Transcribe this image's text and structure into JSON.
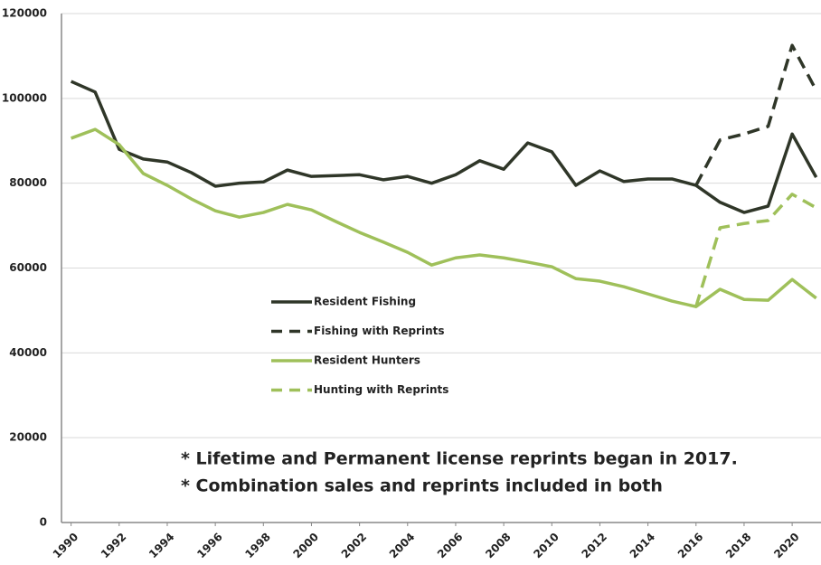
{
  "chart_data": {
    "type": "line",
    "x": [
      1990,
      1991,
      1992,
      1993,
      1994,
      1995,
      1996,
      1997,
      1998,
      1999,
      2000,
      2001,
      2002,
      2003,
      2004,
      2005,
      2006,
      2007,
      2008,
      2009,
      2010,
      2011,
      2012,
      2013,
      2014,
      2015,
      2016,
      2017,
      2018,
      2019,
      2020,
      2021
    ],
    "series": [
      {
        "name": "Resident Fishing",
        "color": "#2f3628",
        "dash": false,
        "values": [
          104000,
          101500,
          88000,
          85700,
          85000,
          82500,
          79300,
          80000,
          80300,
          83100,
          81600,
          81800,
          82000,
          80800,
          81600,
          80000,
          82000,
          85300,
          83300,
          89500,
          87400,
          79500,
          82900,
          80400,
          81000,
          81000,
          79500,
          75500,
          73100,
          74600,
          91600,
          81400
        ]
      },
      {
        "name": "Fishing with Reprints",
        "color": "#2f3628",
        "dash": true,
        "values": [
          null,
          null,
          null,
          null,
          null,
          null,
          null,
          null,
          null,
          null,
          null,
          null,
          null,
          null,
          null,
          null,
          null,
          null,
          null,
          null,
          null,
          null,
          null,
          null,
          null,
          null,
          79500,
          90200,
          91600,
          93400,
          112500,
          101900
        ]
      },
      {
        "name": "Resident Hunters",
        "color": "#9fc05a",
        "dash": false,
        "values": [
          90600,
          92700,
          89100,
          82300,
          79500,
          76300,
          73500,
          72000,
          73100,
          75000,
          73700,
          71000,
          68400,
          66100,
          63700,
          60700,
          62400,
          63100,
          62400,
          61400,
          60300,
          57500,
          56900,
          55600,
          53900,
          52200,
          50900,
          55000,
          52600,
          52400,
          57300,
          52900
        ]
      },
      {
        "name": "Hunting with Reprints",
        "color": "#9fc05a",
        "dash": true,
        "values": [
          null,
          null,
          null,
          null,
          null,
          null,
          null,
          null,
          null,
          null,
          null,
          null,
          null,
          null,
          null,
          null,
          null,
          null,
          null,
          null,
          null,
          null,
          null,
          null,
          null,
          null,
          50900,
          69500,
          70500,
          71200,
          77400,
          74200
        ]
      }
    ],
    "xlim": [
      1989.6,
      2021.2
    ],
    "xticks": [
      1990,
      1992,
      1994,
      1996,
      1998,
      2000,
      2002,
      2004,
      2006,
      2008,
      2010,
      2012,
      2014,
      2016,
      2018,
      2020
    ],
    "ylim": [
      0,
      120000
    ],
    "yticks": [
      0,
      20000,
      40000,
      60000,
      80000,
      100000,
      120000
    ],
    "grid": true,
    "annotations": [
      "* Lifetime and Permanent license reprints began in 2017.",
      "* Combination sales and reprints included in both"
    ]
  }
}
